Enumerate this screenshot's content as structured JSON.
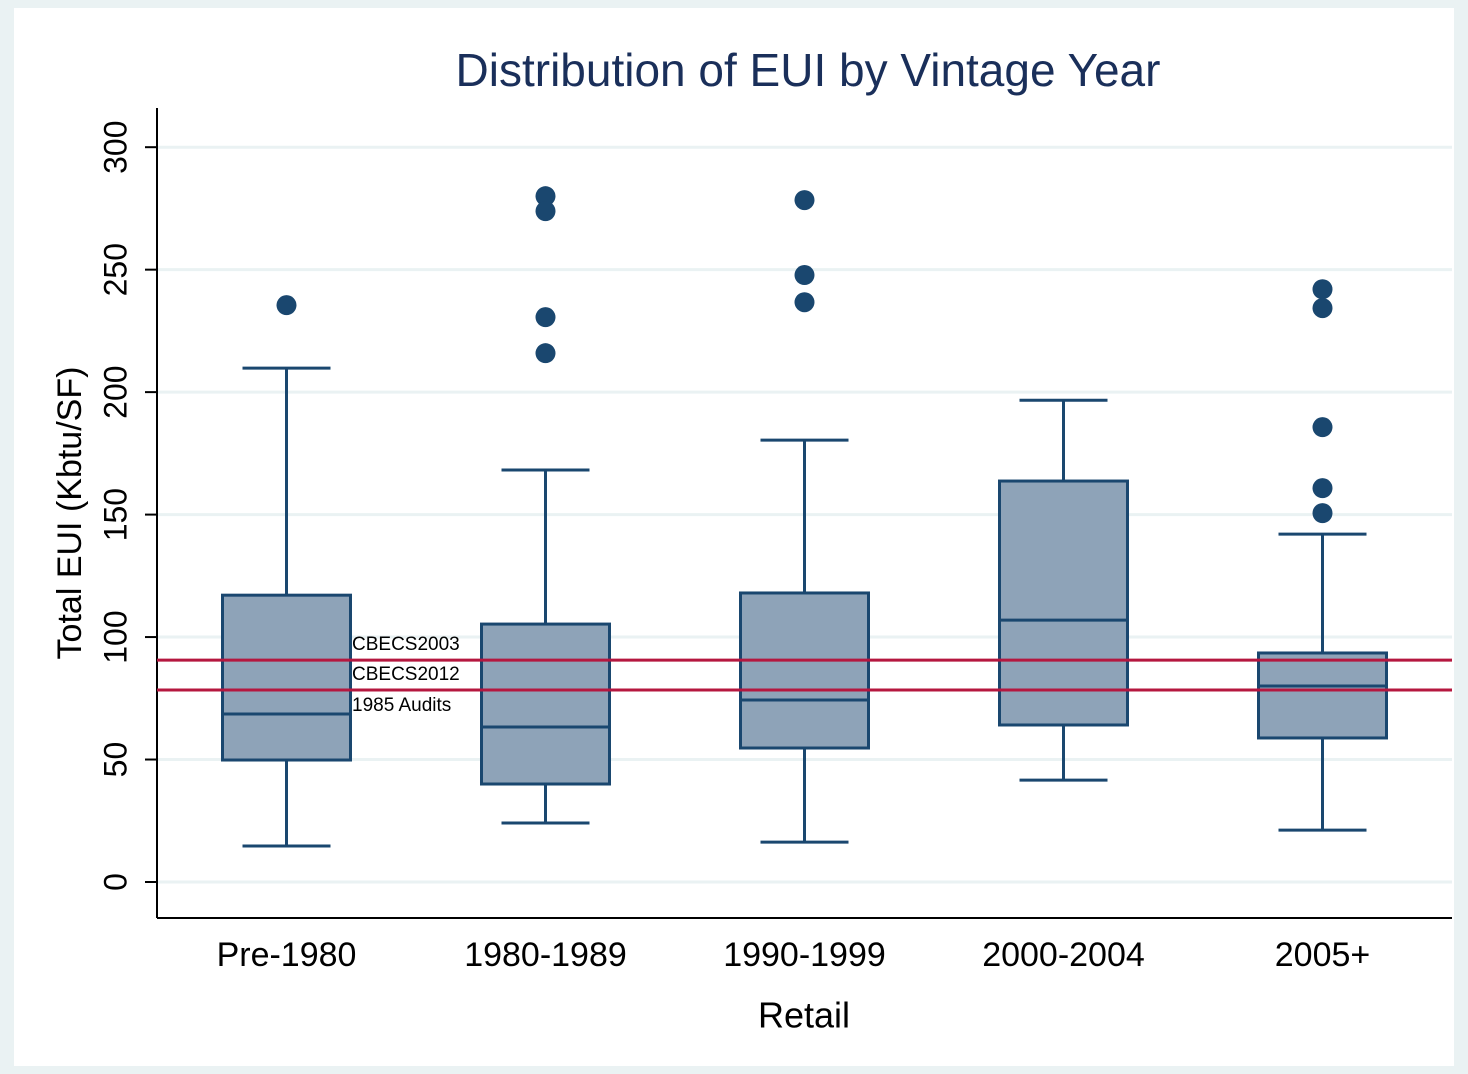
{
  "chart_data": {
    "type": "box",
    "title": "Distribution of EUI by Vintage Year",
    "x_label": "Retail",
    "y_label": "Total EUI (Kbtu/SF)",
    "categories": [
      "Pre-1980",
      "1980-1989",
      "1990-1999",
      "2000-2004",
      "2005+"
    ],
    "boxes": [
      {
        "min": 14.7,
        "q1": 49.8,
        "median": 68.6,
        "q3": 117.1,
        "max": 209.8,
        "outliers": [
          235.5
        ]
      },
      {
        "min": 24.1,
        "q1": 40,
        "median": 63.3,
        "q3": 105.3,
        "max": 168.2,
        "outliers": [
          280,
          273.9,
          230.6,
          215.9
        ]
      },
      {
        "min": 16.3,
        "q1": 54.7,
        "median": 74.3,
        "q3": 118,
        "max": 180.4,
        "outliers": [
          278.4,
          247.8,
          236.7
        ]
      },
      {
        "min": 41.6,
        "q1": 64.1,
        "median": 106.9,
        "q3": 163.7,
        "max": 196.7,
        "outliers": []
      },
      {
        "min": 21.2,
        "q1": 58.8,
        "median": 80,
        "q3": 93.5,
        "max": 142,
        "outliers": [
          242,
          234.3,
          185.7,
          160.8,
          150.6
        ]
      }
    ],
    "reference_lines": [
      {
        "label": "CBECS2003",
        "value": 90.6,
        "label_position": "above"
      },
      {
        "label": "CBECS2012",
        "value": 78.4,
        "label_position": "above"
      },
      {
        "label": "1985 Audits",
        "value": 78.4,
        "label_position": "below"
      }
    ],
    "color": "#8ea3b8",
    "line_color": "#1a476f",
    "reference_color": "#b5173f",
    "ylim": [
      -14.7,
      316
    ],
    "yticks": [
      0,
      50,
      100,
      150,
      200,
      250,
      300
    ],
    "grid": true
  }
}
